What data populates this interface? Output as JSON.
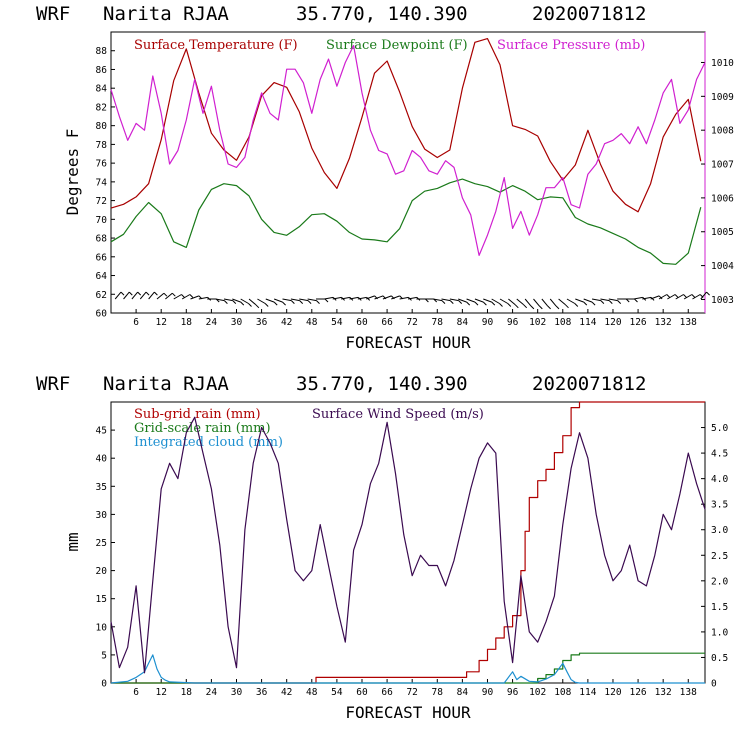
{
  "chart_data": [
    {
      "type": "line",
      "header": {
        "model": "WRF",
        "station": "Narita RJAA",
        "coords": "35.770, 140.390",
        "init": "2020071812"
      },
      "xlabel": "FORECAST HOUR",
      "ylabel": "Degrees F",
      "xlim": [
        0,
        142
      ],
      "ylim": [
        60,
        90
      ],
      "y2lim": [
        1002.6,
        1010.9
      ],
      "x_ticks": [
        6,
        12,
        18,
        24,
        30,
        36,
        42,
        48,
        54,
        60,
        66,
        72,
        78,
        84,
        90,
        96,
        102,
        108,
        114,
        120,
        126,
        132,
        138
      ],
      "y_ticks": [
        60,
        62,
        64,
        66,
        68,
        70,
        72,
        74,
        76,
        78,
        80,
        82,
        84,
        86,
        88
      ],
      "y2_ticks": [
        1003,
        1004,
        1005,
        1006,
        1007,
        1008,
        1009,
        1010
      ],
      "series": [
        {
          "name": "Surface Temperature (F)",
          "color": "#a80000",
          "axis": "left",
          "x": [
            0,
            3,
            6,
            9,
            12,
            15,
            18,
            21,
            24,
            27,
            30,
            33,
            36,
            39,
            42,
            45,
            48,
            51,
            54,
            57,
            60,
            63,
            66,
            69,
            72,
            75,
            78,
            81,
            84,
            87,
            90,
            93,
            96,
            99,
            102,
            105,
            108,
            111,
            114,
            117,
            120,
            123,
            126,
            129,
            132,
            135,
            138,
            141
          ],
          "values": [
            71.2,
            71.6,
            72.4,
            73.8,
            78.5,
            84.8,
            88.2,
            83.5,
            79.2,
            77.4,
            76.3,
            78.8,
            83.2,
            84.6,
            84.1,
            81.5,
            77.6,
            75.0,
            73.3,
            76.5,
            80.9,
            85.6,
            86.9,
            83.6,
            79.9,
            77.5,
            76.6,
            77.4,
            84.0,
            88.9,
            89.3,
            86.5,
            80.0,
            79.6,
            78.9,
            76.2,
            74.2,
            75.8,
            79.5,
            75.9,
            73.0,
            71.6,
            70.8,
            73.8,
            78.8,
            81.2,
            82.8,
            76.2
          ]
        },
        {
          "name": "Surface Dewpoint (F)",
          "color": "#1a7a1a",
          "axis": "left",
          "x": [
            0,
            3,
            6,
            9,
            12,
            15,
            18,
            21,
            24,
            27,
            30,
            33,
            36,
            39,
            42,
            45,
            48,
            51,
            54,
            57,
            60,
            63,
            66,
            69,
            72,
            75,
            78,
            81,
            84,
            87,
            90,
            93,
            96,
            99,
            102,
            105,
            108,
            111,
            114,
            117,
            120,
            123,
            126,
            129,
            132,
            135,
            138,
            141
          ],
          "values": [
            67.6,
            68.4,
            70.3,
            71.8,
            70.6,
            67.6,
            67.0,
            71.0,
            73.2,
            73.8,
            73.6,
            72.5,
            70.0,
            68.6,
            68.3,
            69.2,
            70.5,
            70.6,
            69.8,
            68.6,
            67.9,
            67.8,
            67.6,
            69.0,
            72.0,
            73.0,
            73.3,
            73.9,
            74.3,
            73.8,
            73.5,
            72.9,
            73.6,
            73.0,
            72.1,
            72.4,
            72.3,
            70.2,
            69.5,
            69.1,
            68.5,
            67.9,
            67.0,
            66.4,
            65.3,
            65.2,
            66.4,
            71.3
          ]
        },
        {
          "name": "Surface Pressure (mb)",
          "color": "#d020d0",
          "axis": "right",
          "x": [
            0,
            2,
            4,
            6,
            8,
            10,
            12,
            14,
            16,
            18,
            20,
            22,
            24,
            26,
            28,
            30,
            32,
            34,
            36,
            38,
            40,
            42,
            44,
            46,
            48,
            50,
            52,
            54,
            56,
            58,
            60,
            62,
            64,
            66,
            68,
            70,
            72,
            74,
            76,
            78,
            80,
            82,
            84,
            86,
            88,
            90,
            92,
            94,
            96,
            98,
            100,
            102,
            104,
            106,
            108,
            110,
            112,
            114,
            116,
            118,
            120,
            122,
            124,
            126,
            128,
            130,
            132,
            134,
            136,
            138,
            140,
            142
          ],
          "values": [
            1009.2,
            1008.4,
            1007.7,
            1008.2,
            1008.0,
            1009.6,
            1008.5,
            1007.0,
            1007.4,
            1008.3,
            1009.5,
            1008.5,
            1009.3,
            1008.0,
            1007.0,
            1006.9,
            1007.2,
            1008.3,
            1009.1,
            1008.5,
            1008.3,
            1009.8,
            1009.8,
            1009.4,
            1008.5,
            1009.5,
            1010.1,
            1009.3,
            1010.0,
            1010.5,
            1009.1,
            1008.0,
            1007.4,
            1007.3,
            1006.7,
            1006.8,
            1007.4,
            1007.2,
            1006.8,
            1006.7,
            1007.1,
            1006.9,
            1006.0,
            1005.5,
            1004.3,
            1004.9,
            1005.6,
            1006.6,
            1005.1,
            1005.6,
            1004.9,
            1005.5,
            1006.3,
            1006.3,
            1006.6,
            1005.8,
            1005.7,
            1006.7,
            1007.0,
            1007.6,
            1007.7,
            1007.9,
            1007.6,
            1008.1,
            1007.6,
            1008.3,
            1009.1,
            1009.5,
            1008.2,
            1008.6,
            1009.5,
            1010.0
          ]
        }
      ],
      "wind_barbs": true,
      "grid": false,
      "legend_position": "top"
    },
    {
      "type": "line",
      "header": {
        "model": "WRF",
        "station": "Narita RJAA",
        "coords": "35.770, 140.390",
        "init": "2020071812"
      },
      "xlabel": "FORECAST HOUR",
      "ylabel": "mm",
      "xlim": [
        0,
        142
      ],
      "ylim": [
        0,
        50
      ],
      "y2lim": [
        0,
        5.5
      ],
      "x_ticks": [
        6,
        12,
        18,
        24,
        30,
        36,
        42,
        48,
        54,
        60,
        66,
        72,
        78,
        84,
        90,
        96,
        102,
        108,
        114,
        120,
        126,
        132,
        138
      ],
      "y_ticks": [
        0,
        5,
        10,
        15,
        20,
        25,
        30,
        35,
        40,
        45
      ],
      "y2_ticks": [
        0,
        0.5,
        1.0,
        1.5,
        2.0,
        2.5,
        3.0,
        3.5,
        4.0,
        4.5,
        5.0
      ],
      "series": [
        {
          "name": "Sub-grid rain (mm)",
          "color": "#b00000",
          "axis": "left",
          "step": true,
          "x": [
            0,
            48,
            49,
            84,
            85,
            88,
            90,
            92,
            94,
            96,
            98,
            99,
            100,
            102,
            104,
            106,
            108,
            110,
            112,
            142
          ],
          "values": [
            0,
            0,
            1,
            1,
            2,
            4,
            6,
            8,
            10,
            12,
            20,
            27,
            33,
            36,
            38,
            41,
            44,
            49,
            50,
            50
          ]
        },
        {
          "name": "Grid-scale rain (mm)",
          "color": "#1a7a1a",
          "axis": "left",
          "step": true,
          "x": [
            0,
            100,
            102,
            104,
            106,
            108,
            110,
            112,
            142
          ],
          "values": [
            0,
            0,
            0.8,
            1.5,
            2.5,
            4.0,
            5.0,
            5.3,
            5.3
          ]
        },
        {
          "name": "Integrated cloud (mm)",
          "color": "#1e90d0",
          "axis": "left",
          "x": [
            0,
            4,
            6,
            8,
            9,
            10,
            11,
            12,
            13,
            14,
            20,
            40,
            60,
            80,
            94,
            96,
            97,
            98,
            100,
            102,
            104,
            106,
            107,
            108,
            109,
            110,
            111,
            112,
            142
          ],
          "values": [
            0,
            0.3,
            1,
            2,
            3.5,
            5,
            2.5,
            1,
            0.5,
            0.2,
            0,
            0,
            0,
            0,
            0,
            2,
            0.6,
            1.2,
            0.3,
            0.2,
            0.7,
            1.5,
            2.5,
            3.5,
            2.0,
            0.6,
            0.1,
            0,
            0
          ]
        },
        {
          "name": "Surface Wind Speed (m/s)",
          "color": "#3a0a50",
          "axis": "right",
          "x": [
            0,
            2,
            4,
            6,
            8,
            10,
            12,
            14,
            16,
            18,
            20,
            22,
            24,
            26,
            28,
            30,
            32,
            34,
            36,
            38,
            40,
            42,
            44,
            46,
            48,
            50,
            52,
            54,
            56,
            58,
            60,
            62,
            64,
            66,
            68,
            70,
            72,
            74,
            76,
            78,
            80,
            82,
            84,
            86,
            88,
            90,
            92,
            94,
            96,
            98,
            100,
            102,
            104,
            106,
            108,
            110,
            112,
            114,
            116,
            118,
            120,
            122,
            124,
            126,
            128,
            130,
            132,
            134,
            136,
            138,
            140,
            142
          ],
          "values": [
            1.2,
            0.3,
            0.7,
            1.9,
            0.2,
            2.0,
            3.8,
            4.3,
            4.0,
            4.9,
            5.2,
            4.5,
            3.8,
            2.7,
            1.1,
            0.3,
            3.0,
            4.3,
            5.0,
            4.7,
            4.3,
            3.2,
            2.2,
            2.0,
            2.2,
            3.1,
            2.3,
            1.5,
            0.8,
            2.6,
            3.1,
            3.9,
            4.3,
            5.1,
            4.1,
            2.9,
            2.1,
            2.5,
            2.3,
            2.3,
            1.9,
            2.4,
            3.1,
            3.8,
            4.4,
            4.7,
            4.5,
            1.6,
            0.4,
            2.1,
            1.0,
            0.8,
            1.2,
            1.7,
            3.1,
            4.2,
            4.9,
            4.4,
            3.3,
            2.5,
            2.0,
            2.2,
            2.7,
            2.0,
            1.9,
            2.5,
            3.3,
            3.0,
            3.7,
            4.5,
            3.9,
            3.4
          ]
        }
      ],
      "grid": false,
      "legend_position": "top-left"
    }
  ]
}
